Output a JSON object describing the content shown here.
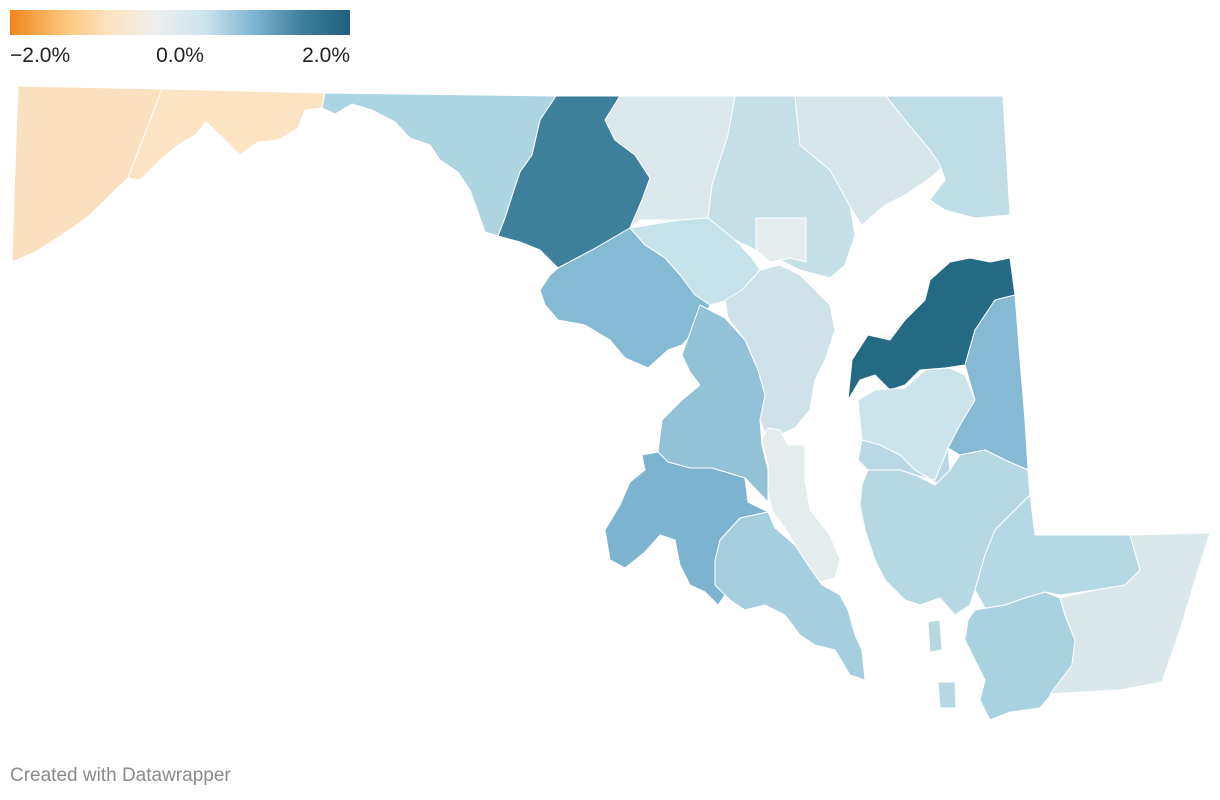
{
  "legend": {
    "min_label": "−2.0%",
    "mid_label": "0.0%",
    "max_label": "2.0%",
    "colors": [
      "#f08519",
      "#fbbf70",
      "#fde3bd",
      "#eeeeee",
      "#cde4ed",
      "#7fb6d3",
      "#3d7f9d",
      "#1f5f7e"
    ]
  },
  "map": {
    "regions": [
      {
        "id": "garrett",
        "color": "#fbe0bf"
      },
      {
        "id": "allegany",
        "color": "#fbe3c4"
      },
      {
        "id": "washington",
        "color": "#acd4e1"
      },
      {
        "id": "frederick",
        "color": "#3e7f9b"
      },
      {
        "id": "carroll",
        "color": "#dbe8ec"
      },
      {
        "id": "baltimore-county",
        "color": "#c6e0e8"
      },
      {
        "id": "harford",
        "color": "#d7e6ea"
      },
      {
        "id": "cecil",
        "color": "#bedde6"
      },
      {
        "id": "baltimore-city",
        "color": "#e6ecee"
      },
      {
        "id": "howard",
        "color": "#c5e1e9"
      },
      {
        "id": "montgomery",
        "color": "#84bad4"
      },
      {
        "id": "anne-arundel",
        "color": "#cfe2e9"
      },
      {
        "id": "prince-georges",
        "color": "#92c2d7"
      },
      {
        "id": "charles",
        "color": "#7bb3d0"
      },
      {
        "id": "calvert",
        "color": "#e4ecee"
      },
      {
        "id": "st-marys",
        "color": "#a5cedf"
      },
      {
        "id": "kent",
        "color": "#246a85"
      },
      {
        "id": "queen-annes",
        "color": "#cbe3eb"
      },
      {
        "id": "caroline",
        "color": "#86bad4"
      },
      {
        "id": "talbot",
        "color": "#b8d9e4"
      },
      {
        "id": "dorchester",
        "color": "#b5d8e3"
      },
      {
        "id": "wicomico",
        "color": "#b4d8e4"
      },
      {
        "id": "somerset",
        "color": "#a9d2e1"
      },
      {
        "id": "worcester",
        "color": "#dbe8eb"
      }
    ]
  },
  "credit": "Created with Datawrapper"
}
